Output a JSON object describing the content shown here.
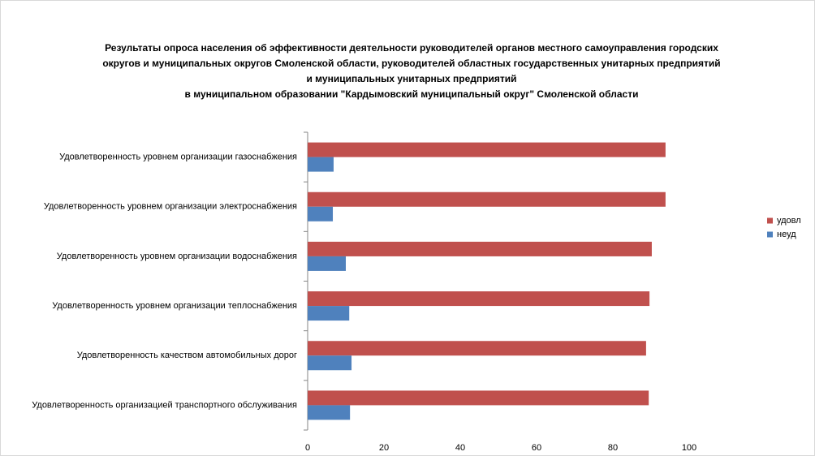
{
  "chart_data": {
    "type": "bar",
    "orientation": "horizontal",
    "title": [
      "Результаты опроса населения об эффективности деятельности руководителей органов местного самоуправления городских",
      "округов и муниципальных округов Смоленской области, руководителей областных государственных унитарных предприятий",
      "и муниципальных унитарных предприятий",
      "в муниципальном образовании \"Кардымовский муниципальный округ\" Смоленской области"
    ],
    "categories": [
      "Удовлетворенность уровнем организации газоснабжения",
      "Удовлетворенность уровнем организации электроснабжения",
      "Удовлетворенность уровнем организации водоснабжения",
      "Удовлетворенность уровнем организации теплоснабжения",
      "Удовлетворенность качеством автомобильных дорог",
      "Удовлетворенность организацией транспортного обслуживания"
    ],
    "series": [
      {
        "name": "удовл",
        "color": "#c0504d",
        "values": [
          93.8,
          93.8,
          90.2,
          89.6,
          88.7,
          89.4
        ]
      },
      {
        "name": "неуд",
        "color": "#4f81bd",
        "values": [
          6.8,
          6.6,
          10.0,
          10.9,
          11.5,
          11.1
        ]
      }
    ],
    "xlim": [
      0,
      100
    ],
    "xticks": [
      0,
      20,
      40,
      60,
      80,
      100
    ],
    "grid": false,
    "legend": "right"
  }
}
